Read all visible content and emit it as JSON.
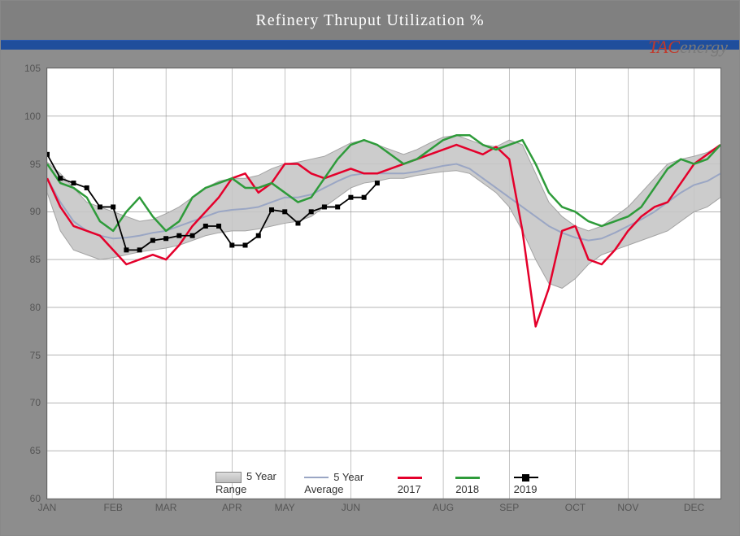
{
  "title": "Refinery Thruput Utilization %",
  "logo": {
    "tac": "TAC",
    "energy": "energy"
  },
  "chart": {
    "type": "line-with-band",
    "background": "#8d8d8d",
    "plot_bg": "#ffffff",
    "grid_color": "#888888",
    "ylim": [
      60,
      105
    ],
    "ytick_step": 5,
    "yticks": [
      60,
      65,
      70,
      75,
      80,
      85,
      90,
      95,
      100,
      105
    ],
    "x_n": 52,
    "x_month_ticks": [
      0,
      5,
      9,
      14,
      18,
      23,
      30,
      35,
      40,
      44,
      49
    ],
    "x_month_labels": [
      "JAN",
      "FEB",
      "MAR",
      "APR",
      "MAY",
      "JUN",
      "AUG",
      "SEP",
      "OCT",
      "NOV",
      "DEC"
    ],
    "legend": [
      {
        "key": "range",
        "label": "5 Year Range",
        "type": "area"
      },
      {
        "key": "avg",
        "label": "5 Year Average",
        "type": "line",
        "color": "#9aa6c4"
      },
      {
        "key": "2017",
        "label": "2017",
        "type": "line",
        "color": "#e4002b"
      },
      {
        "key": "2018",
        "label": "2018",
        "type": "line",
        "color": "#2e9b3a"
      },
      {
        "key": "2019",
        "label": "2019",
        "type": "marker",
        "color": "#000000"
      }
    ],
    "range_hi": [
      95.2,
      94.0,
      92.5,
      91.0,
      90.5,
      90.0,
      89.5,
      89.0,
      89.2,
      89.8,
      90.5,
      91.5,
      92.5,
      93.2,
      93.5,
      93.5,
      93.8,
      94.5,
      95.0,
      95.2,
      95.5,
      95.8,
      96.5,
      97.2,
      97.5,
      97.0,
      96.5,
      96.0,
      96.5,
      97.2,
      97.8,
      98.0,
      97.5,
      97.0,
      96.8,
      97.5,
      97.0,
      94.0,
      91.0,
      89.5,
      88.5,
      88.0,
      88.5,
      89.5,
      90.5,
      92.0,
      93.5,
      95.0,
      95.5,
      95.8,
      96.2,
      97.0
    ],
    "range_lo": [
      92.0,
      88.0,
      86.0,
      85.5,
      85.0,
      85.2,
      85.5,
      85.8,
      86.0,
      86.2,
      86.5,
      87.0,
      87.5,
      87.8,
      88.0,
      88.0,
      88.2,
      88.5,
      88.8,
      89.0,
      89.5,
      90.5,
      91.5,
      92.5,
      93.0,
      93.2,
      93.5,
      93.5,
      93.8,
      94.0,
      94.2,
      94.3,
      94.0,
      93.0,
      92.0,
      90.5,
      88.0,
      85.0,
      82.5,
      82.0,
      83.0,
      84.5,
      85.5,
      86.0,
      86.5,
      87.0,
      87.5,
      88.0,
      89.0,
      90.0,
      90.5,
      91.5
    ],
    "avg": [
      93.5,
      91.0,
      89.0,
      88.0,
      87.5,
      87.2,
      87.3,
      87.5,
      87.8,
      88.0,
      88.5,
      89.0,
      89.5,
      90.0,
      90.2,
      90.3,
      90.5,
      91.0,
      91.5,
      91.5,
      91.8,
      92.5,
      93.2,
      93.8,
      94.0,
      94.0,
      94.0,
      94.0,
      94.2,
      94.5,
      94.8,
      95.0,
      94.5,
      93.5,
      92.5,
      91.5,
      90.5,
      89.5,
      88.5,
      87.8,
      87.3,
      87.0,
      87.2,
      87.8,
      88.5,
      89.2,
      90.0,
      91.0,
      92.0,
      92.8,
      93.2,
      94.0
    ],
    "s2017": [
      93.5,
      90.5,
      88.5,
      88.0,
      87.5,
      86.0,
      84.5,
      85.0,
      85.5,
      85.0,
      86.5,
      88.5,
      90.0,
      91.5,
      93.5,
      94.0,
      92.0,
      93.0,
      95.0,
      95.0,
      94.0,
      93.5,
      94.0,
      94.5,
      94.0,
      94.0,
      94.5,
      95.0,
      95.5,
      96.0,
      96.5,
      97.0,
      96.5,
      96.0,
      96.8,
      95.5,
      88.0,
      78.0,
      82.0,
      88.0,
      88.5,
      85.0,
      84.5,
      86.0,
      88.0,
      89.5,
      90.5,
      91.0,
      93.0,
      95.0,
      96.0,
      97.0
    ],
    "s2018": [
      95.0,
      93.0,
      92.5,
      91.5,
      89.0,
      88.0,
      90.0,
      91.5,
      89.5,
      88.0,
      89.0,
      91.5,
      92.5,
      93.0,
      93.5,
      92.5,
      92.5,
      93.0,
      92.0,
      91.0,
      91.5,
      93.5,
      95.5,
      97.0,
      97.5,
      97.0,
      96.0,
      95.0,
      95.5,
      96.5,
      97.5,
      98.0,
      98.0,
      97.0,
      96.5,
      97.0,
      97.5,
      95.0,
      92.0,
      90.5,
      90.0,
      89.0,
      88.5,
      89.0,
      89.5,
      90.5,
      92.5,
      94.5,
      95.5,
      95.0,
      95.5,
      97.0
    ],
    "s2019": [
      96.0,
      93.5,
      93.0,
      92.5,
      90.5,
      90.5,
      86.0,
      86.0,
      87.0,
      87.2,
      87.5,
      87.5,
      88.5,
      88.5,
      86.5,
      86.5,
      87.5,
      90.2,
      90.0,
      88.8,
      90.0,
      90.5,
      90.5,
      91.5,
      91.5,
      93.0
    ],
    "line_styles": {
      "avg": {
        "color": "#9aa6c4",
        "width": 2
      },
      "s2017": {
        "color": "#e4002b",
        "width": 2.5
      },
      "s2018": {
        "color": "#2e9b3a",
        "width": 2.5
      },
      "s2019": {
        "color": "#000000",
        "width": 1.8,
        "marker": "square",
        "marker_size": 5
      }
    },
    "band_fill": "#c7c7c7",
    "band_stroke": "#9a9a9a"
  }
}
